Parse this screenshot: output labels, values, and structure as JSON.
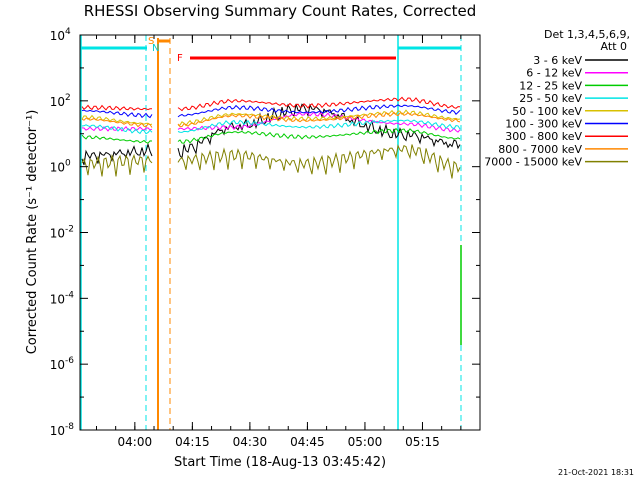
{
  "chart_data": {
    "type": "line",
    "title": "RHESSI Observing Summary Count Rates, Corrected",
    "xlabel": "Start Time (18-Aug-13 03:45:42)",
    "ylabel": "Corrected Count Rate (s⁻¹ detector⁻¹)",
    "y_scale": "log",
    "ylim_exponents": [
      -8,
      4
    ],
    "xlim": [
      "03:45:42",
      "05:30:00"
    ],
    "x_ticks": [
      "04:00",
      "04:15",
      "04:30",
      "04:45",
      "05:00",
      "05:15"
    ],
    "y_ticks": [
      {
        "base": "10",
        "exp": "4"
      },
      {
        "base": "10",
        "exp": "2"
      },
      {
        "base": "10",
        "exp": "0"
      },
      {
        "base": "10",
        "exp": "-2"
      },
      {
        "base": "10",
        "exp": "-4"
      },
      {
        "base": "10",
        "exp": "-6"
      },
      {
        "base": "10",
        "exp": "-8"
      }
    ],
    "legend_header": [
      "Det 1,3,4,5,6,9,",
      "Att 0"
    ],
    "series": [
      {
        "name": "3 - 6 keV",
        "color": "#000000",
        "levels_log10": [
          0.35,
          0.5,
          1.25,
          1.8,
          1.0,
          0.7
        ]
      },
      {
        "name": "6 - 12 keV",
        "color": "#ff00ff",
        "levels_log10": [
          1.15,
          1.15,
          1.2,
          1.6,
          1.3,
          1.1
        ]
      },
      {
        "name": "12 - 25 keV",
        "color": "#00cc00",
        "levels_log10": [
          0.9,
          0.75,
          1.05,
          0.9,
          1.1,
          0.85
        ]
      },
      {
        "name": "25 - 50 keV",
        "color": "#00e5e5",
        "levels_log10": [
          1.25,
          1.05,
          1.35,
          1.2,
          1.4,
          1.2
        ]
      },
      {
        "name": "50 - 100 keV",
        "color": "#d8c000",
        "levels_log10": [
          1.5,
          1.3,
          1.6,
          1.45,
          1.65,
          1.45
        ]
      },
      {
        "name": "100 - 300 keV",
        "color": "#0000ff",
        "levels_log10": [
          1.7,
          1.55,
          1.8,
          1.65,
          1.85,
          1.65
        ]
      },
      {
        "name": "300 - 800 keV",
        "color": "#ff0000",
        "levels_log10": [
          1.8,
          1.75,
          2.0,
          1.85,
          2.05,
          1.8
        ]
      },
      {
        "name": "800 - 7000 keV",
        "color": "#ff8800",
        "levels_log10": [
          1.45,
          1.25,
          1.55,
          1.4,
          1.6,
          1.4
        ]
      },
      {
        "name": "7000 - 15000 keV",
        "color": "#808000",
        "levels_log10": [
          0.1,
          0.2,
          0.35,
          0.1,
          0.55,
          0.0
        ]
      }
    ],
    "flags": [
      {
        "label": "S",
        "color": "#ff8800"
      },
      {
        "label": "N",
        "color": "#00cccc"
      },
      {
        "label": "F",
        "color": "#ff0000"
      }
    ],
    "timestamp": "21-Oct-2021 18:31"
  }
}
